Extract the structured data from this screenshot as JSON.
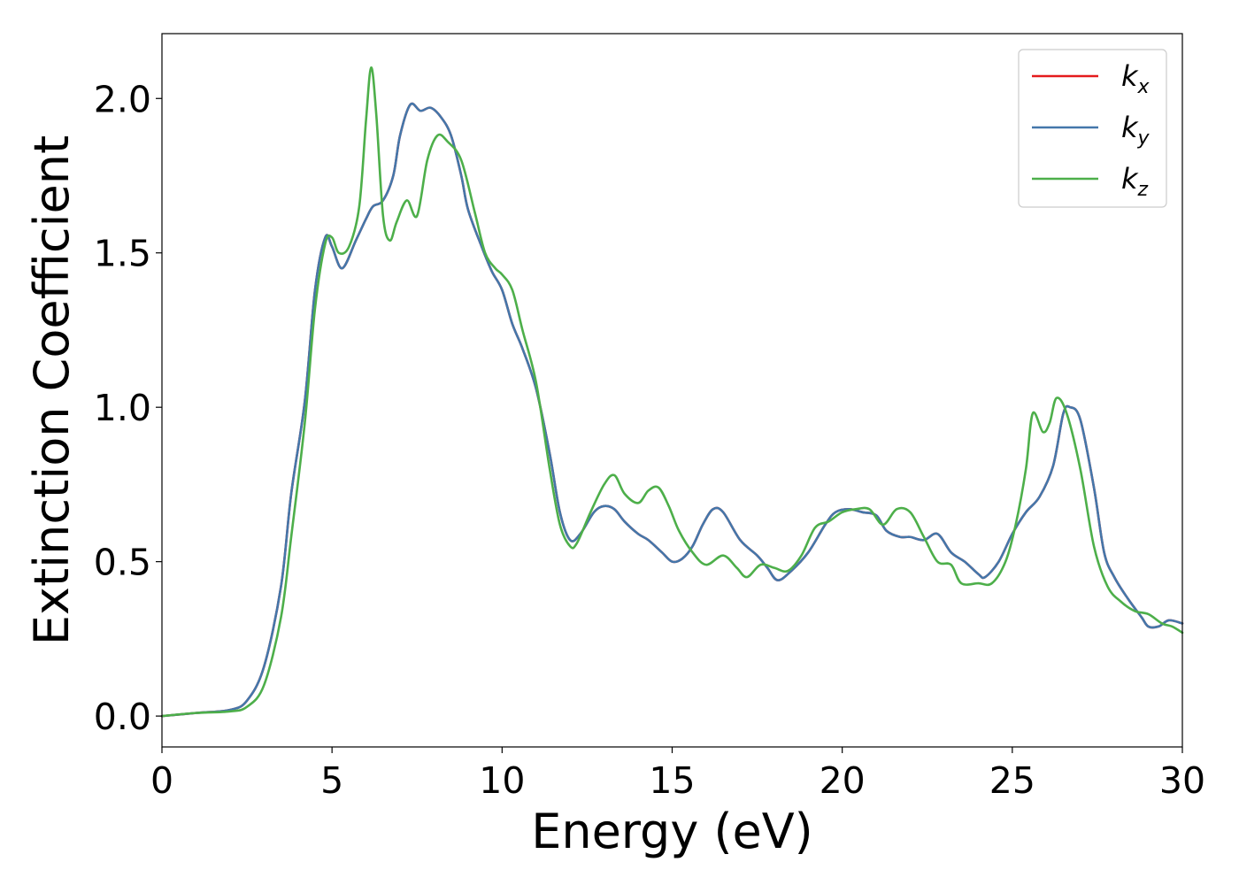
{
  "chart_data": {
    "type": "line",
    "title": "",
    "xlabel": "Energy (eV)",
    "ylabel": "Extinction Coefficient",
    "xlim": [
      0,
      30
    ],
    "ylim": [
      -0.1,
      2.21
    ],
    "x_ticks": [
      0,
      5,
      10,
      15,
      20,
      25,
      30
    ],
    "x_tick_labels": [
      "0",
      "5",
      "10",
      "15",
      "20",
      "25",
      "30"
    ],
    "y_ticks": [
      0.0,
      0.5,
      1.0,
      1.5,
      2.0
    ],
    "y_tick_labels": [
      "0.0",
      "0.5",
      "1.0",
      "1.5",
      "2.0"
    ],
    "grid": false,
    "legend_position": "top-right",
    "series": [
      {
        "name": "k",
        "subscript": "x",
        "color": "#e41a1c",
        "x": [
          0,
          1,
          2,
          2.5,
          3,
          3.5,
          3.8,
          4.2,
          4.5,
          4.8,
          5.0,
          5.3,
          5.7,
          6.0,
          6.2,
          6.5,
          6.8,
          7.0,
          7.3,
          7.6,
          7.9,
          8.2,
          8.5,
          8.8,
          9.0,
          9.4,
          9.7,
          10.0,
          10.3,
          10.6,
          11.0,
          11.4,
          11.7,
          12.0,
          12.3,
          12.7,
          13.0,
          13.3,
          13.6,
          14.0,
          14.3,
          14.7,
          15.0,
          15.3,
          15.6,
          15.9,
          16.2,
          16.5,
          17.0,
          17.5,
          17.8,
          18.1,
          18.5,
          19.0,
          19.5,
          19.8,
          20.2,
          20.6,
          21.0,
          21.3,
          21.7,
          22.0,
          22.4,
          22.8,
          23.2,
          23.6,
          24.0,
          24.2,
          24.6,
          25.0,
          25.4,
          25.8,
          26.2,
          26.5,
          26.7,
          27.0,
          27.4,
          27.7,
          28.0,
          28.4,
          28.8,
          29.0,
          29.3,
          29.6,
          30.0
        ],
        "values": [
          0.0,
          0.01,
          0.02,
          0.05,
          0.16,
          0.42,
          0.72,
          1.02,
          1.38,
          1.55,
          1.52,
          1.45,
          1.54,
          1.61,
          1.65,
          1.67,
          1.75,
          1.88,
          1.98,
          1.96,
          1.97,
          1.94,
          1.88,
          1.75,
          1.64,
          1.52,
          1.44,
          1.38,
          1.27,
          1.19,
          1.06,
          0.85,
          0.66,
          0.57,
          0.59,
          0.66,
          0.68,
          0.67,
          0.63,
          0.59,
          0.57,
          0.53,
          0.5,
          0.51,
          0.55,
          0.62,
          0.67,
          0.66,
          0.57,
          0.52,
          0.48,
          0.44,
          0.47,
          0.53,
          0.62,
          0.66,
          0.67,
          0.66,
          0.65,
          0.6,
          0.58,
          0.58,
          0.57,
          0.59,
          0.53,
          0.5,
          0.46,
          0.45,
          0.5,
          0.59,
          0.66,
          0.71,
          0.81,
          0.98,
          1.0,
          0.96,
          0.74,
          0.53,
          0.45,
          0.38,
          0.32,
          0.29,
          0.29,
          0.31,
          0.3
        ]
      },
      {
        "name": "k",
        "subscript": "y",
        "color": "#4477aa",
        "x": [
          0,
          1,
          2,
          2.5,
          3,
          3.5,
          3.8,
          4.2,
          4.5,
          4.8,
          5.0,
          5.3,
          5.7,
          6.0,
          6.2,
          6.5,
          6.8,
          7.0,
          7.3,
          7.6,
          7.9,
          8.2,
          8.5,
          8.8,
          9.0,
          9.4,
          9.7,
          10.0,
          10.3,
          10.6,
          11.0,
          11.4,
          11.7,
          12.0,
          12.3,
          12.7,
          13.0,
          13.3,
          13.6,
          14.0,
          14.3,
          14.7,
          15.0,
          15.3,
          15.6,
          15.9,
          16.2,
          16.5,
          17.0,
          17.5,
          17.8,
          18.1,
          18.5,
          19.0,
          19.5,
          19.8,
          20.2,
          20.6,
          21.0,
          21.3,
          21.7,
          22.0,
          22.4,
          22.8,
          23.2,
          23.6,
          24.0,
          24.2,
          24.6,
          25.0,
          25.4,
          25.8,
          26.2,
          26.5,
          26.7,
          27.0,
          27.4,
          27.7,
          28.0,
          28.4,
          28.8,
          29.0,
          29.3,
          29.6,
          30.0
        ],
        "values": [
          0.0,
          0.01,
          0.02,
          0.05,
          0.16,
          0.42,
          0.72,
          1.02,
          1.38,
          1.55,
          1.52,
          1.45,
          1.54,
          1.61,
          1.65,
          1.67,
          1.75,
          1.88,
          1.98,
          1.96,
          1.97,
          1.94,
          1.88,
          1.75,
          1.64,
          1.52,
          1.44,
          1.38,
          1.27,
          1.19,
          1.06,
          0.85,
          0.66,
          0.57,
          0.59,
          0.66,
          0.68,
          0.67,
          0.63,
          0.59,
          0.57,
          0.53,
          0.5,
          0.51,
          0.55,
          0.62,
          0.67,
          0.66,
          0.57,
          0.52,
          0.48,
          0.44,
          0.47,
          0.53,
          0.62,
          0.66,
          0.67,
          0.66,
          0.65,
          0.6,
          0.58,
          0.58,
          0.57,
          0.59,
          0.53,
          0.5,
          0.46,
          0.45,
          0.5,
          0.59,
          0.66,
          0.71,
          0.81,
          0.98,
          1.0,
          0.96,
          0.74,
          0.53,
          0.45,
          0.38,
          0.32,
          0.29,
          0.29,
          0.31,
          0.3
        ]
      },
      {
        "name": "k",
        "subscript": "z",
        "color": "#4daf4a",
        "x": [
          0,
          1,
          2,
          2.5,
          3,
          3.5,
          3.8,
          4.2,
          4.5,
          4.8,
          5.0,
          5.2,
          5.5,
          5.8,
          6.0,
          6.15,
          6.3,
          6.5,
          6.7,
          6.9,
          7.2,
          7.5,
          7.8,
          8.1,
          8.4,
          8.8,
          9.2,
          9.5,
          9.8,
          10.0,
          10.3,
          10.6,
          11.0,
          11.4,
          11.7,
          12.0,
          12.2,
          12.6,
          13.0,
          13.3,
          13.6,
          14.0,
          14.3,
          14.6,
          14.9,
          15.2,
          15.6,
          16.0,
          16.5,
          16.9,
          17.2,
          17.6,
          18.0,
          18.4,
          18.8,
          19.2,
          19.6,
          20.0,
          20.4,
          20.8,
          21.2,
          21.6,
          22.0,
          22.4,
          22.8,
          23.2,
          23.5,
          24.0,
          24.4,
          24.8,
          25.1,
          25.4,
          25.6,
          25.9,
          26.1,
          26.3,
          26.6,
          27.0,
          27.4,
          27.8,
          28.2,
          28.6,
          29.0,
          29.4,
          29.7,
          30.0
        ],
        "values": [
          0.0,
          0.01,
          0.015,
          0.03,
          0.1,
          0.32,
          0.58,
          0.95,
          1.32,
          1.53,
          1.55,
          1.5,
          1.52,
          1.65,
          1.93,
          2.1,
          1.95,
          1.62,
          1.54,
          1.6,
          1.67,
          1.62,
          1.8,
          1.88,
          1.86,
          1.8,
          1.63,
          1.5,
          1.45,
          1.43,
          1.38,
          1.25,
          1.08,
          0.8,
          0.62,
          0.55,
          0.56,
          0.66,
          0.75,
          0.78,
          0.72,
          0.69,
          0.73,
          0.74,
          0.68,
          0.6,
          0.53,
          0.49,
          0.52,
          0.48,
          0.45,
          0.49,
          0.48,
          0.47,
          0.52,
          0.61,
          0.63,
          0.66,
          0.67,
          0.67,
          0.62,
          0.67,
          0.66,
          0.58,
          0.5,
          0.49,
          0.43,
          0.43,
          0.43,
          0.5,
          0.62,
          0.8,
          0.98,
          0.92,
          0.95,
          1.03,
          0.98,
          0.8,
          0.55,
          0.42,
          0.37,
          0.34,
          0.33,
          0.3,
          0.29,
          0.27
        ]
      }
    ]
  }
}
